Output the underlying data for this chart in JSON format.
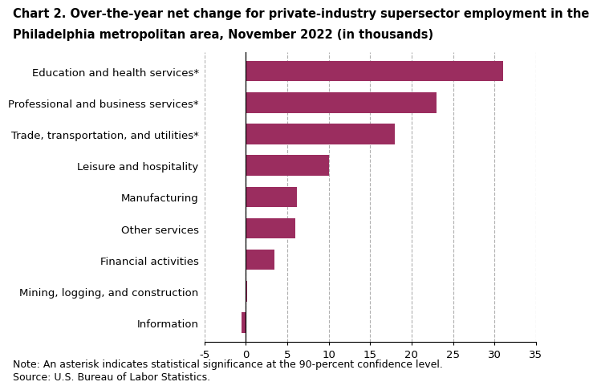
{
  "title_line1": "Chart 2. Over-the-year net change for private-industry supersector employment in the",
  "title_line2": "Philadelphia metropolitan area, November 2022 (in thousands)",
  "categories": [
    "Information",
    "Mining, logging, and construction",
    "Financial activities",
    "Other services",
    "Manufacturing",
    "Leisure and hospitality",
    "Trade, transportation, and utilities*",
    "Professional and business services*",
    "Education and health services*"
  ],
  "values": [
    -0.5,
    0.2,
    3.5,
    6.0,
    6.2,
    10.0,
    18.0,
    23.0,
    31.0
  ],
  "bar_color": "#9b2d5f",
  "xlim": [
    -5,
    35
  ],
  "xticks": [
    -5,
    0,
    5,
    10,
    15,
    20,
    25,
    30,
    35
  ],
  "grid_color": "#b0b0b0",
  "note_line1": "Note: An asterisk indicates statistical significance at the 90-percent confidence level.",
  "note_line2": "Source: U.S. Bureau of Labor Statistics.",
  "title_fontsize": 10.5,
  "label_fontsize": 9.5,
  "tick_fontsize": 9.5,
  "note_fontsize": 9.0
}
